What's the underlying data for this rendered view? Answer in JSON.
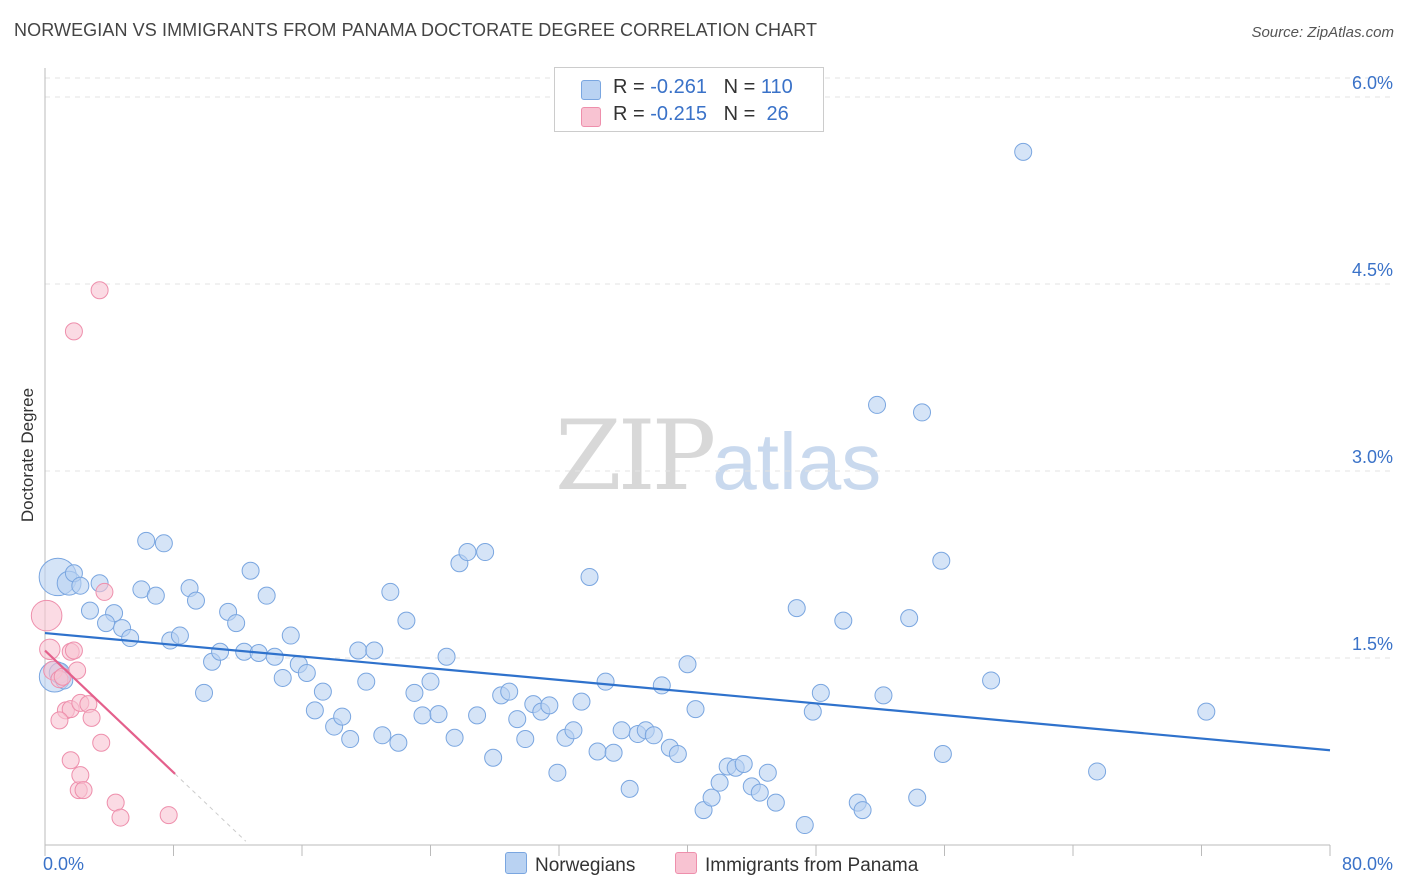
{
  "header": {
    "title": "NORWEGIAN VS IMMIGRANTS FROM PANAMA DOCTORATE DEGREE CORRELATION CHART",
    "source": "Source: ZipAtlas.com"
  },
  "watermark": {
    "zip": "ZIP",
    "atlas": "atlas"
  },
  "colors": {
    "blue_fill": "#b9d2f2",
    "blue_stroke": "#7aa6e0",
    "blue_line": "#2f72cc",
    "pink_fill": "#f8c3d2",
    "pink_stroke": "#ee8fac",
    "pink_line": "#e4608c",
    "axis_label": "#3a72c8",
    "grid": "#e3e3e3"
  },
  "legend": {
    "rows": [
      {
        "r_label": "R = ",
        "r_value": "-0.261",
        "n_label": "N = ",
        "n_value": "110"
      },
      {
        "r_label": "R = ",
        "r_value": "-0.215",
        "n_label": "N = ",
        "n_value": " 26"
      }
    ]
  },
  "bottom_legend": {
    "series1": "Norwegians",
    "series2": "Immigrants from Panama"
  },
  "chart_data": {
    "type": "scatter",
    "title": "NORWEGIAN VS IMMIGRANTS FROM PANAMA DOCTORATE DEGREE CORRELATION CHART",
    "xlabel": "",
    "ylabel": "Doctorate Degree",
    "xlim": [
      0,
      80
    ],
    "ylim": [
      0,
      6.25
    ],
    "x_tick_labels": [
      "0.0%",
      "80.0%"
    ],
    "y_ticks": [
      1.5,
      3.0,
      4.5,
      6.0
    ],
    "y_tick_labels": [
      "1.5%",
      "3.0%",
      "4.5%",
      "6.0%"
    ],
    "series": [
      {
        "name": "Norwegians",
        "r": -0.261,
        "n": 110,
        "trend": {
          "x": [
            0,
            80
          ],
          "y": [
            1.7,
            0.76
          ]
        },
        "points": [
          [
            0.8,
            2.15,
            2.2
          ],
          [
            1.5,
            2.1,
            1.4
          ],
          [
            1.8,
            2.18,
            1
          ],
          [
            2.2,
            2.08,
            1
          ],
          [
            0.6,
            1.35,
            1.8
          ],
          [
            0.9,
            1.38,
            1.2
          ],
          [
            1.2,
            1.32,
            1
          ],
          [
            2.8,
            1.88,
            1
          ],
          [
            3.4,
            2.1,
            1
          ],
          [
            4.3,
            1.86,
            1
          ],
          [
            3.8,
            1.78,
            1
          ],
          [
            4.8,
            1.74,
            1
          ],
          [
            5.3,
            1.66,
            1
          ],
          [
            6.0,
            2.05,
            1
          ],
          [
            6.9,
            2.0,
            1
          ],
          [
            6.3,
            2.44,
            1
          ],
          [
            7.4,
            2.42,
            1
          ],
          [
            7.8,
            1.64,
            1
          ],
          [
            8.4,
            1.68,
            1
          ],
          [
            9.0,
            2.06,
            1
          ],
          [
            9.4,
            1.96,
            1
          ],
          [
            9.9,
            1.22,
            1
          ],
          [
            10.4,
            1.47,
            1
          ],
          [
            10.9,
            1.55,
            1
          ],
          [
            11.4,
            1.87,
            1
          ],
          [
            11.9,
            1.78,
            1
          ],
          [
            12.4,
            1.55,
            1
          ],
          [
            12.8,
            2.2,
            1
          ],
          [
            13.3,
            1.54,
            1
          ],
          [
            13.8,
            2.0,
            1
          ],
          [
            14.3,
            1.51,
            1
          ],
          [
            14.8,
            1.34,
            1
          ],
          [
            15.3,
            1.68,
            1
          ],
          [
            15.8,
            1.45,
            1
          ],
          [
            16.3,
            1.38,
            1
          ],
          [
            16.8,
            1.08,
            1
          ],
          [
            17.3,
            1.23,
            1
          ],
          [
            18.0,
            0.95,
            1
          ],
          [
            18.5,
            1.03,
            1
          ],
          [
            19.0,
            0.85,
            1
          ],
          [
            19.5,
            1.56,
            1
          ],
          [
            20.0,
            1.31,
            1
          ],
          [
            20.5,
            1.56,
            1
          ],
          [
            21.0,
            0.88,
            1
          ],
          [
            21.5,
            2.03,
            1
          ],
          [
            22.0,
            0.82,
            1
          ],
          [
            22.5,
            1.8,
            1
          ],
          [
            23.0,
            1.22,
            1
          ],
          [
            23.5,
            1.04,
            1
          ],
          [
            24.0,
            1.31,
            1
          ],
          [
            24.5,
            1.05,
            1
          ],
          [
            25.0,
            1.51,
            1
          ],
          [
            25.5,
            0.86,
            1
          ],
          [
            25.8,
            2.26,
            1
          ],
          [
            26.3,
            2.35,
            1
          ],
          [
            26.9,
            1.04,
            1
          ],
          [
            27.4,
            2.35,
            1
          ],
          [
            27.9,
            0.7,
            1
          ],
          [
            28.4,
            1.2,
            1
          ],
          [
            28.9,
            1.23,
            1
          ],
          [
            29.4,
            1.01,
            1
          ],
          [
            29.9,
            0.85,
            1
          ],
          [
            30.4,
            1.13,
            1
          ],
          [
            30.9,
            1.07,
            1
          ],
          [
            31.4,
            1.12,
            1
          ],
          [
            31.9,
            0.58,
            1
          ],
          [
            32.4,
            0.86,
            1
          ],
          [
            32.9,
            0.92,
            1
          ],
          [
            33.4,
            1.15,
            1
          ],
          [
            33.9,
            2.15,
            1
          ],
          [
            34.4,
            0.75,
            1
          ],
          [
            34.9,
            1.31,
            1
          ],
          [
            35.4,
            0.74,
            1
          ],
          [
            35.9,
            0.92,
            1
          ],
          [
            36.4,
            0.45,
            1
          ],
          [
            36.9,
            0.89,
            1
          ],
          [
            37.4,
            0.92,
            1
          ],
          [
            37.9,
            0.88,
            1
          ],
          [
            38.4,
            1.28,
            1
          ],
          [
            38.9,
            0.78,
            1
          ],
          [
            39.4,
            0.73,
            1
          ],
          [
            40.0,
            1.45,
            1
          ],
          [
            40.5,
            1.09,
            1
          ],
          [
            41.0,
            0.28,
            1
          ],
          [
            41.5,
            0.38,
            1
          ],
          [
            42.0,
            0.5,
            1
          ],
          [
            42.5,
            0.63,
            1
          ],
          [
            43.0,
            0.62,
            1
          ],
          [
            43.5,
            0.65,
            1
          ],
          [
            44.0,
            0.47,
            1
          ],
          [
            44.5,
            0.42,
            1
          ],
          [
            45.0,
            0.58,
            1
          ],
          [
            45.5,
            0.34,
            1
          ],
          [
            46.8,
            1.9,
            1
          ],
          [
            47.3,
            0.16,
            1
          ],
          [
            47.8,
            1.07,
            1
          ],
          [
            48.3,
            1.22,
            1
          ],
          [
            49.7,
            1.8,
            1
          ],
          [
            50.6,
            0.34,
            1
          ],
          [
            50.9,
            0.28,
            1
          ],
          [
            51.8,
            3.53,
            1
          ],
          [
            52.2,
            1.2,
            1
          ],
          [
            53.8,
            1.82,
            1
          ],
          [
            54.3,
            0.38,
            1
          ],
          [
            54.6,
            3.47,
            1
          ],
          [
            55.8,
            2.28,
            1
          ],
          [
            55.9,
            0.73,
            1
          ],
          [
            58.9,
            1.32,
            1
          ],
          [
            60.9,
            5.56,
            1
          ],
          [
            65.5,
            0.59,
            1
          ],
          [
            72.3,
            1.07,
            1
          ]
        ]
      },
      {
        "name": "Immigrants from Panama",
        "r": -0.215,
        "n": 26,
        "trend": {
          "x": [
            0,
            8.1
          ],
          "y": [
            1.56,
            0.57
          ]
        },
        "trend_dashed": {
          "x": [
            8.1,
            12.5
          ],
          "y": [
            0.57,
            0.03
          ]
        },
        "points": [
          [
            0.1,
            1.84,
            1.8
          ],
          [
            0.3,
            1.57,
            1.2
          ],
          [
            0.5,
            1.4,
            1.1
          ],
          [
            0.9,
            1.33,
            1
          ],
          [
            1.1,
            1.35,
            1
          ],
          [
            1.6,
            1.55,
            1
          ],
          [
            1.8,
            1.56,
            1
          ],
          [
            2.0,
            1.4,
            1
          ],
          [
            1.3,
            1.08,
            1
          ],
          [
            1.6,
            1.09,
            1
          ],
          [
            0.9,
            1.0,
            1
          ],
          [
            2.2,
            1.14,
            1
          ],
          [
            2.7,
            1.13,
            1
          ],
          [
            2.9,
            1.02,
            1
          ],
          [
            1.6,
            0.68,
            1
          ],
          [
            2.1,
            0.44,
            1
          ],
          [
            2.2,
            0.56,
            1
          ],
          [
            2.4,
            0.44,
            1
          ],
          [
            3.5,
            0.82,
            1
          ],
          [
            3.7,
            2.03,
            1
          ],
          [
            4.4,
            0.34,
            1
          ],
          [
            4.7,
            0.22,
            1
          ],
          [
            7.7,
            0.24,
            1
          ],
          [
            1.8,
            4.12,
            1
          ],
          [
            3.4,
            4.45,
            1
          ]
        ]
      }
    ]
  }
}
